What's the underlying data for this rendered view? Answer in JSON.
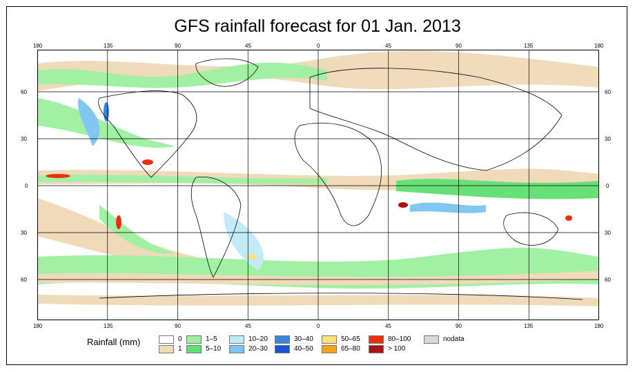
{
  "title": "GFS rainfall forecast for 01 Jan. 2013",
  "axes": {
    "lon_ticks": [
      "180",
      "135",
      "90",
      "45",
      "0",
      "45",
      "90",
      "135",
      "180"
    ],
    "lat_ticks": [
      "60",
      "30",
      "0",
      "30",
      "60"
    ]
  },
  "legend": {
    "label": "Rainfall (mm)",
    "items": [
      {
        "label": "0",
        "color": "#ffffff"
      },
      {
        "label": "1",
        "color": "#efd9b6"
      },
      {
        "label": "1–5",
        "color": "#9ef0a0"
      },
      {
        "label": "5–10",
        "color": "#5fe070"
      },
      {
        "label": "10–20",
        "color": "#bfeaf7"
      },
      {
        "label": "20–30",
        "color": "#7cc4f2"
      },
      {
        "label": "30–40",
        "color": "#3c86e0"
      },
      {
        "label": "40–50",
        "color": "#1a55d6"
      },
      {
        "label": "50–65",
        "color": "#ffe07a"
      },
      {
        "label": "65–80",
        "color": "#f7a21c"
      },
      {
        "label": "80–100",
        "color": "#e8300f"
      },
      {
        "label": "> 100",
        "color": "#a8140f"
      },
      {
        "label": "nodata",
        "color": "#d9d9d9"
      }
    ]
  },
  "colors": {
    "land_line": "#000000",
    "grid": "#000000"
  }
}
